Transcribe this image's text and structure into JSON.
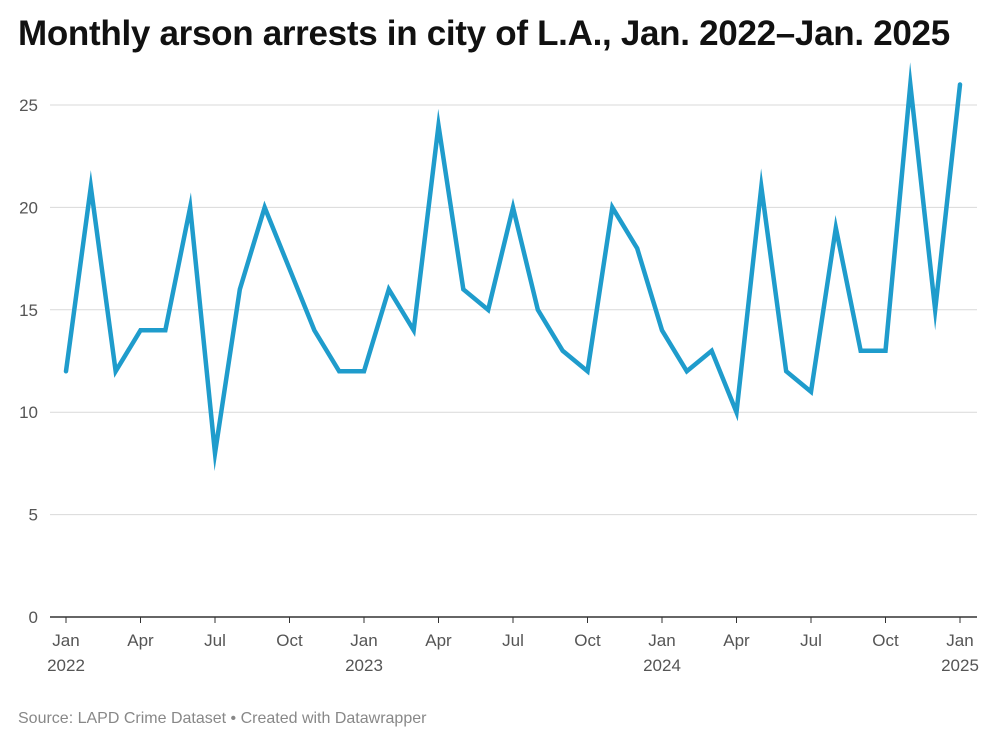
{
  "title": "Monthly arson arrests in city of L.A., Jan. 2022–Jan. 2025",
  "source": "Source: LAPD Crime Dataset • Created with Datawrapper",
  "colors": {
    "line": "#1f9ccc",
    "grid": "#d9d9d9",
    "axis": "#333333",
    "tick_text": "#555555"
  },
  "chart_data": {
    "type": "line",
    "title": "Monthly arson arrests in city of L.A., Jan. 2022–Jan. 2025",
    "xlabel": "",
    "ylabel": "",
    "ylim": [
      0,
      26
    ],
    "yticks": [
      0,
      5,
      10,
      15,
      20,
      25
    ],
    "grid": true,
    "xticks": [
      {
        "index": 0,
        "line1": "Jan",
        "line2": "2022"
      },
      {
        "index": 3,
        "line1": "Apr",
        "line2": ""
      },
      {
        "index": 6,
        "line1": "Jul",
        "line2": ""
      },
      {
        "index": 9,
        "line1": "Oct",
        "line2": ""
      },
      {
        "index": 12,
        "line1": "Jan",
        "line2": "2023"
      },
      {
        "index": 15,
        "line1": "Apr",
        "line2": ""
      },
      {
        "index": 18,
        "line1": "Jul",
        "line2": ""
      },
      {
        "index": 21,
        "line1": "Oct",
        "line2": ""
      },
      {
        "index": 24,
        "line1": "Jan",
        "line2": "2024"
      },
      {
        "index": 27,
        "line1": "Apr",
        "line2": ""
      },
      {
        "index": 30,
        "line1": "Jul",
        "line2": ""
      },
      {
        "index": 33,
        "line1": "Oct",
        "line2": ""
      },
      {
        "index": 36,
        "line1": "Jan",
        "line2": "2025"
      }
    ],
    "x": [
      "2022-01",
      "2022-02",
      "2022-03",
      "2022-04",
      "2022-05",
      "2022-06",
      "2022-07",
      "2022-08",
      "2022-09",
      "2022-10",
      "2022-11",
      "2022-12",
      "2023-01",
      "2023-02",
      "2023-03",
      "2023-04",
      "2023-05",
      "2023-06",
      "2023-07",
      "2023-08",
      "2023-09",
      "2023-10",
      "2023-11",
      "2023-12",
      "2024-01",
      "2024-02",
      "2024-03",
      "2024-04",
      "2024-05",
      "2024-06",
      "2024-07",
      "2024-08",
      "2024-09",
      "2024-10",
      "2024-11",
      "2024-12",
      "2025-01"
    ],
    "series": [
      {
        "name": "Arson arrests",
        "values": [
          12,
          21,
          12,
          14,
          14,
          20,
          8,
          16,
          20,
          17,
          14,
          12,
          12,
          16,
          14,
          24,
          16,
          15,
          20,
          15,
          13,
          12,
          20,
          18,
          14,
          12,
          13,
          10,
          21,
          12,
          11,
          19,
          13,
          13,
          26,
          15,
          26
        ]
      }
    ]
  }
}
